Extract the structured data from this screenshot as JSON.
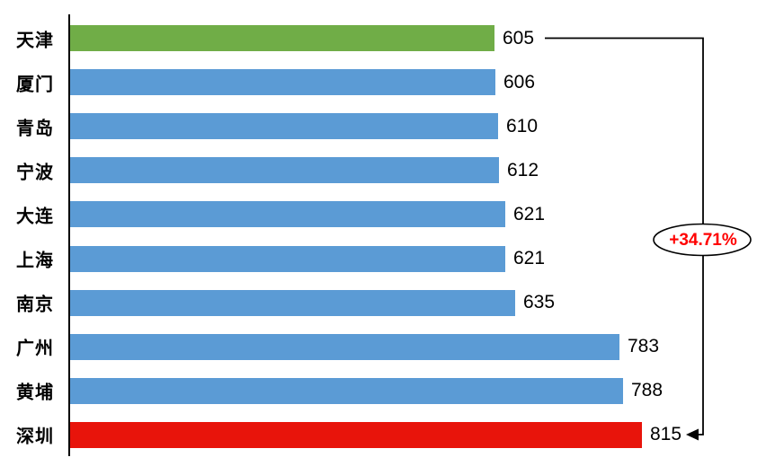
{
  "chart_data": {
    "type": "bar",
    "orientation": "horizontal",
    "title": "",
    "xlabel": "",
    "ylabel": "",
    "grid": false,
    "legend_position": "none",
    "value_axis_range": [
      0,
      900
    ],
    "categories": [
      "天津",
      "厦门",
      "青岛",
      "宁波",
      "大连",
      "上海",
      "南京",
      "广州",
      "黄埔",
      "深圳"
    ],
    "values": [
      605,
      606,
      610,
      612,
      621,
      621,
      635,
      783,
      788,
      815
    ],
    "bar_colors": [
      "#70AD47",
      "#5B9BD5",
      "#5B9BD5",
      "#5B9BD5",
      "#5B9BD5",
      "#5B9BD5",
      "#5B9BD5",
      "#5B9BD5",
      "#5B9BD5",
      "#E8140B"
    ],
    "highlight": {
      "min_bar": {
        "category": "天津",
        "value": 605,
        "color": "#70AD47"
      },
      "max_bar": {
        "category": "深圳",
        "value": 815,
        "color": "#E8140B"
      }
    },
    "annotation": {
      "text": "+34.71%",
      "text_color": "#FF0000",
      "shape": "ellipse",
      "outline_color": "#000000",
      "fill_color": "#FFFFFF",
      "connects": [
        "605",
        "815"
      ]
    },
    "axis_line_color": "#000000",
    "text_color": "#000000"
  }
}
